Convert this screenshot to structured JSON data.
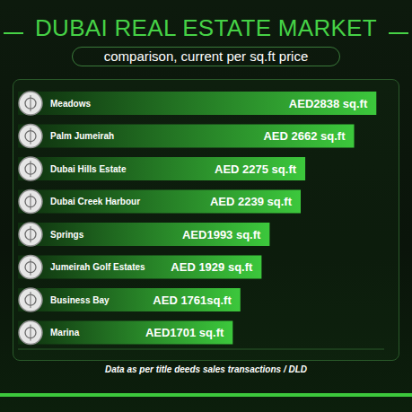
{
  "chart_data": {
    "type": "bar",
    "orientation": "horizontal",
    "title": "DUBAI REAL ESTATE MARKET",
    "subtitle": "comparison, current per sq.ft price",
    "annotation": "Data as per title deeds sales transactions / DLD",
    "categories": [
      "Meadows",
      "Palm Jumeirah",
      "Dubai Hills Estate",
      "Dubai Creek Harbour",
      "Springs",
      "Jumeirah Golf Estates",
      "Business Bay",
      "Marina"
    ],
    "values": [
      2838,
      2662,
      2275,
      2239,
      1993,
      1929,
      1761,
      1701
    ],
    "value_labels": [
      "AED2838 sq.ft",
      "AED 2662 sq.ft",
      "AED 2275 sq.ft",
      "AED 2239 sq.ft",
      "AED1993 sq.ft",
      "AED 1929 sq.ft",
      "AED 1761sq.ft",
      "AED1701 sq.ft"
    ],
    "color": "#3cc83c",
    "xlim": [
      0,
      2900
    ],
    "data_labels": true,
    "tick_labels": false,
    "grid": false
  }
}
